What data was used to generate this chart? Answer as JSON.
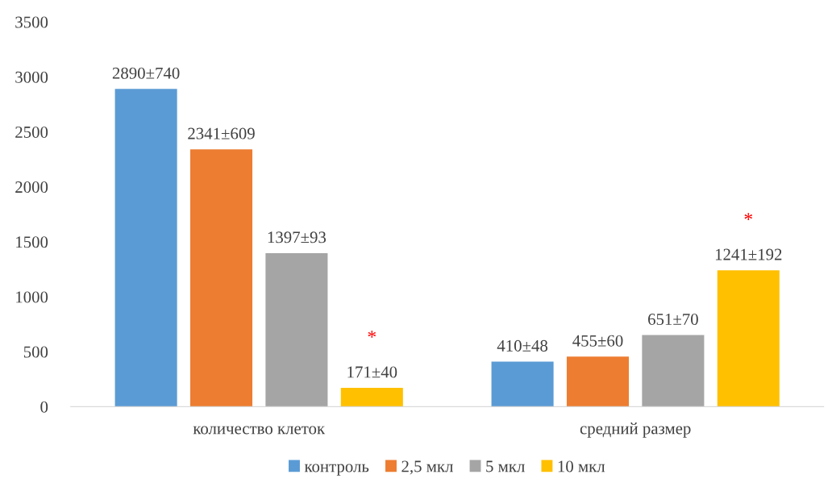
{
  "chart_data": {
    "type": "bar",
    "categories": [
      "количество клеток",
      "средний размер"
    ],
    "series": [
      {
        "name": "контроль",
        "color": "#5b9bd5",
        "values": [
          2890,
          410
        ],
        "value_labels": [
          "2890±740",
          "410±48"
        ]
      },
      {
        "name": "2,5 мкл",
        "color": "#ed7d31",
        "values": [
          2341,
          455
        ],
        "value_labels": [
          "2341±609",
          "455±60"
        ]
      },
      {
        "name": "5 мкл",
        "color": "#a5a5a5",
        "values": [
          1397,
          651
        ],
        "value_labels": [
          "1397±93",
          "651±70"
        ]
      },
      {
        "name": "10 мкл",
        "color": "#ffc000",
        "values": [
          171,
          1241
        ],
        "value_labels": [
          "171±40",
          "1241±192"
        ]
      }
    ],
    "annotations": [
      "*",
      "*"
    ],
    "ylim": [
      0,
      3500
    ],
    "yticks": [
      0,
      500,
      1000,
      1500,
      2000,
      2500,
      3000,
      3500
    ],
    "grid": false,
    "legend": "bottom"
  }
}
